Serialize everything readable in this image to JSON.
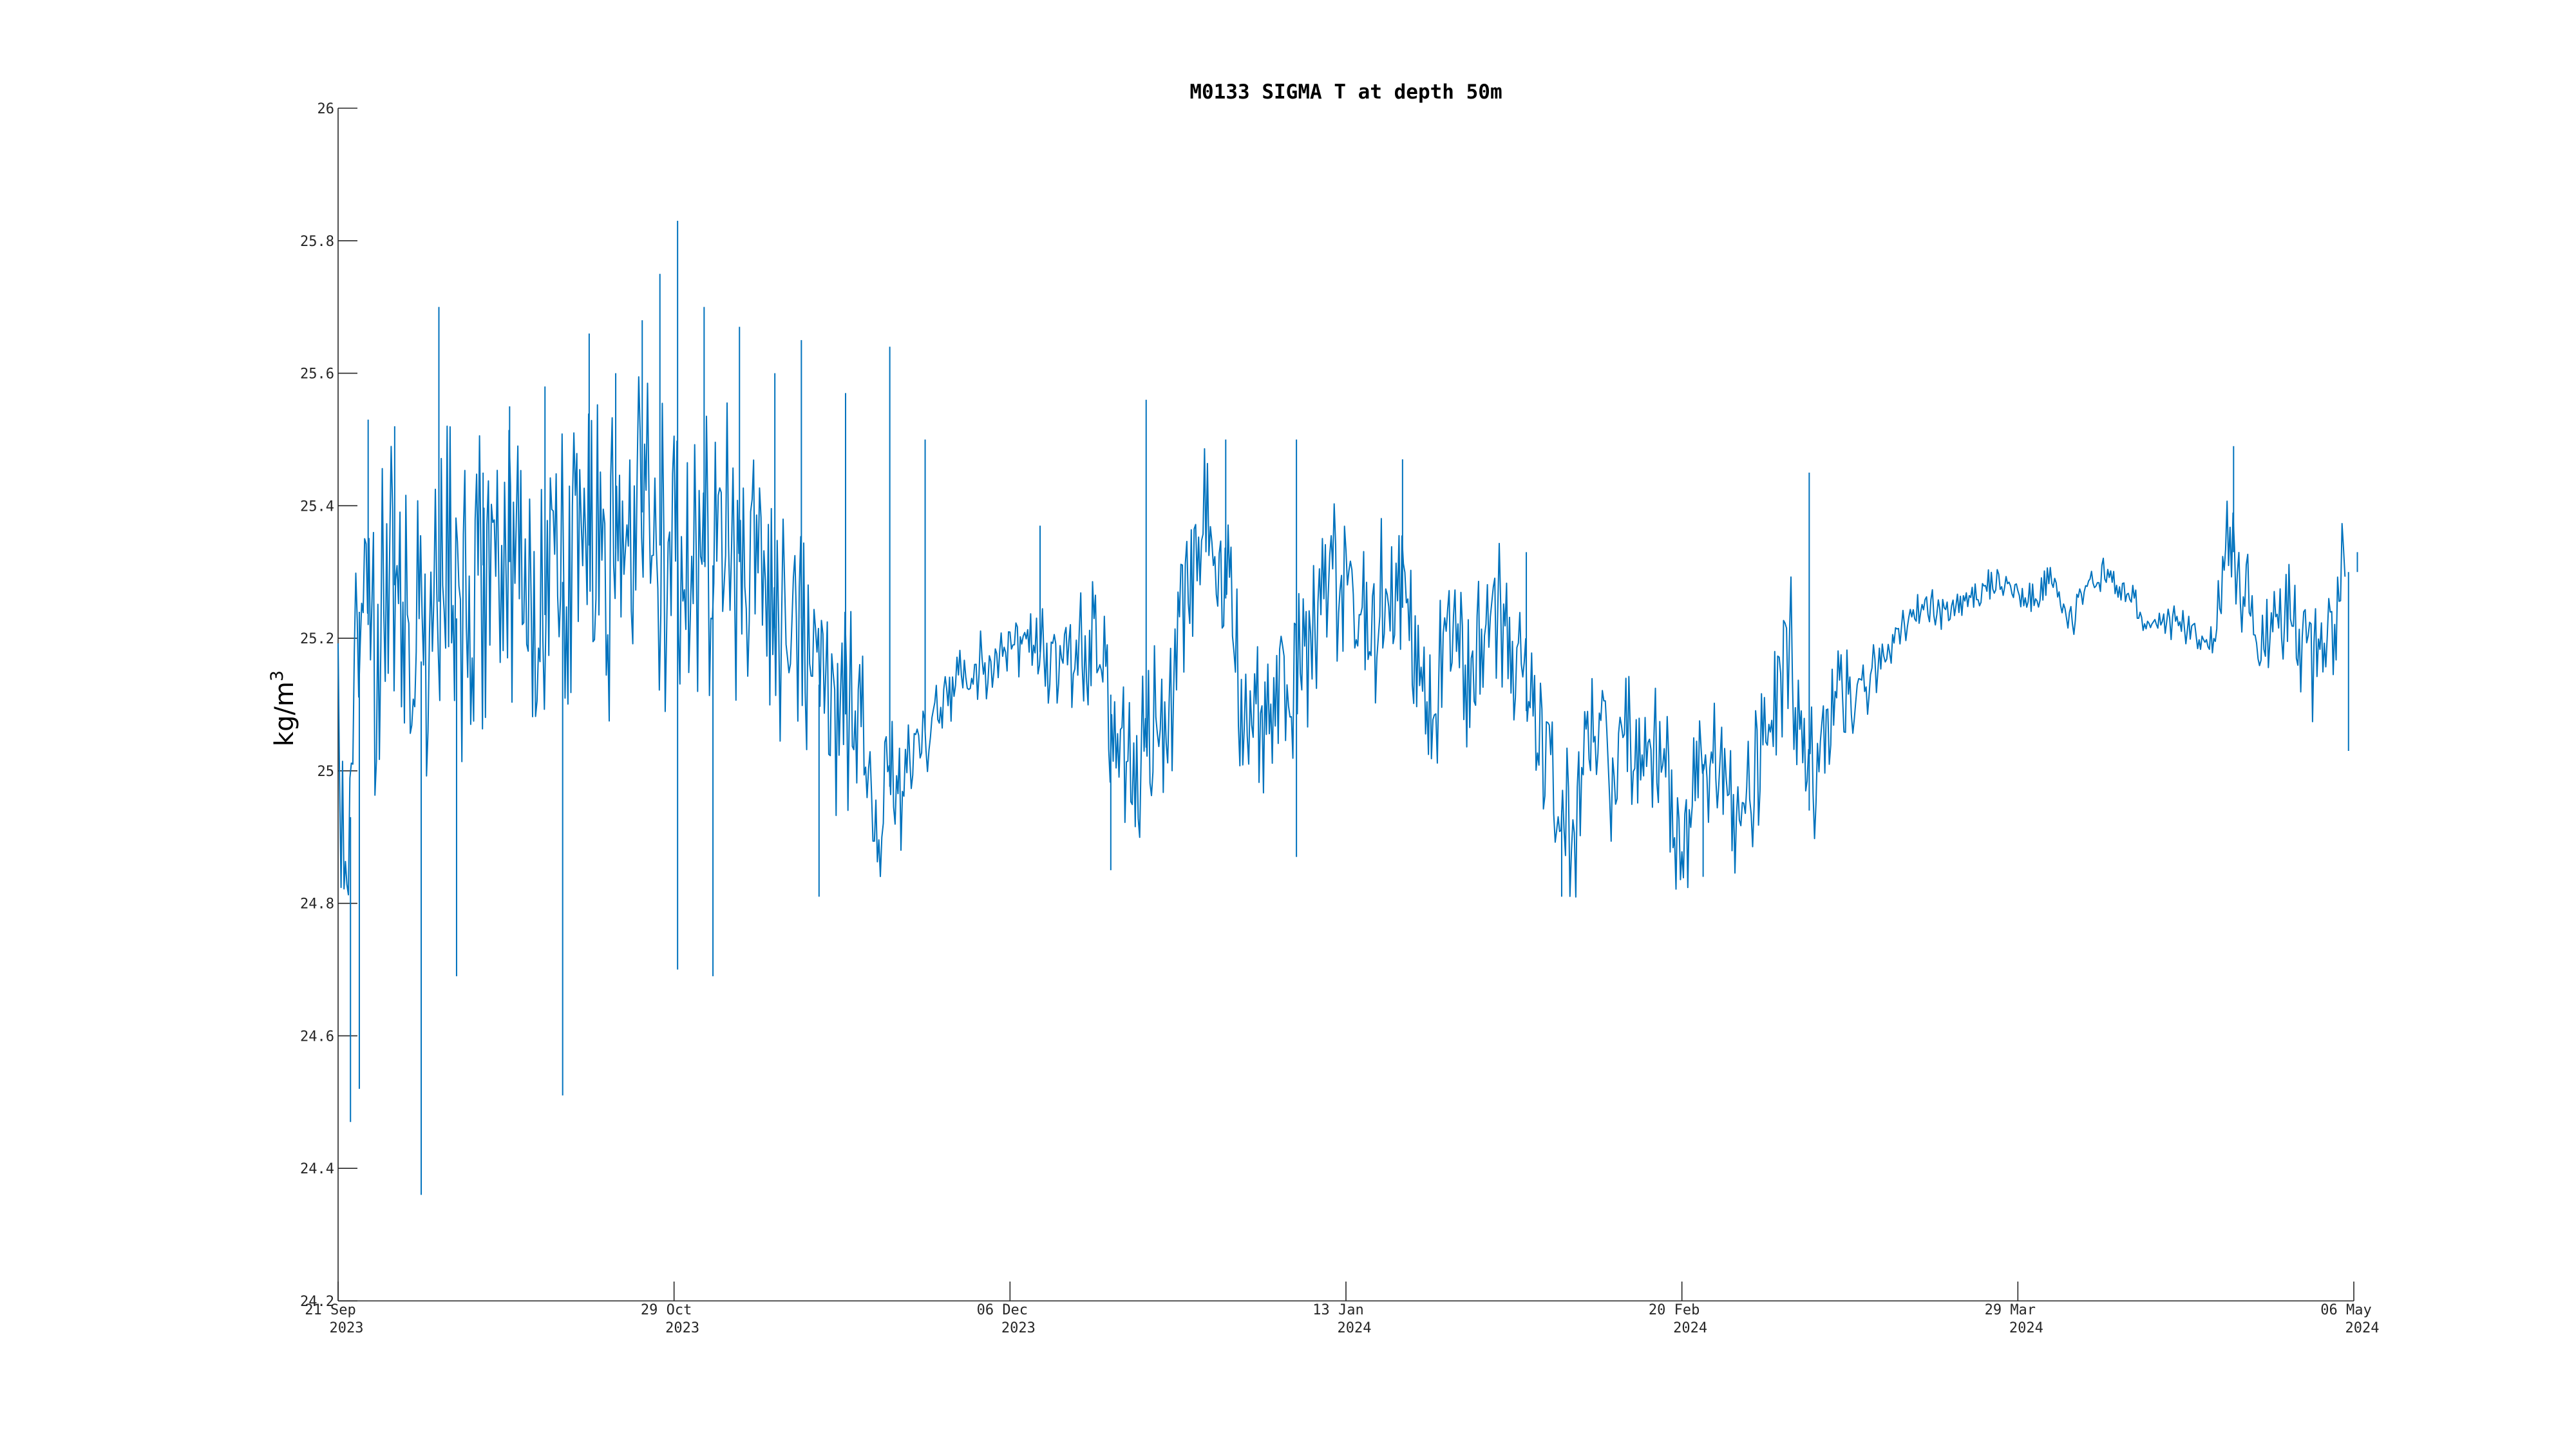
{
  "chart_data": {
    "type": "line",
    "title": "M0133 SIGMA T at depth 50m",
    "ylabel": "kg/m",
    "ylabel_superscript": "3",
    "xlabel": "",
    "ylim": [
      24.2,
      26
    ],
    "yticks": [
      24.2,
      24.4,
      24.6,
      24.8,
      25,
      25.2,
      25.4,
      25.6,
      25.8,
      26
    ],
    "xlim": [
      "2023-09-21",
      "2024-05-06"
    ],
    "xticks": [
      {
        "date": "2023-09-21",
        "day": "21 Sep",
        "year": "2023"
      },
      {
        "date": "2023-10-29",
        "day": "29 Oct",
        "year": "2023"
      },
      {
        "date": "2023-12-06",
        "day": "06 Dec",
        "year": "2023"
      },
      {
        "date": "2024-01-13",
        "day": "13 Jan",
        "year": "2024"
      },
      {
        "date": "2024-02-20",
        "day": "20 Feb",
        "year": "2024"
      },
      {
        "date": "2024-03-29",
        "day": "29 Mar",
        "year": "2024"
      },
      {
        "date": "2024-05-06",
        "day": "06 May",
        "year": "2024"
      }
    ],
    "grid": false,
    "series_color": "#0072BD",
    "series": [
      {
        "name": "",
        "points": [
          [
            "2023-09-21",
            25.05
          ],
          [
            "2023-09-22",
            24.75
          ],
          [
            "2023-09-23",
            25.2
          ],
          [
            "2023-09-24",
            25.3
          ],
          [
            "2023-09-25",
            25.1
          ],
          [
            "2023-09-27",
            25.3
          ],
          [
            "2023-09-29",
            25.2
          ],
          [
            "2023-10-01",
            25.15
          ],
          [
            "2023-10-03",
            25.3
          ],
          [
            "2023-10-05",
            25.2
          ],
          [
            "2023-10-07",
            25.3
          ],
          [
            "2023-10-09",
            25.35
          ],
          [
            "2023-10-11",
            25.3
          ],
          [
            "2023-10-13",
            25.2
          ],
          [
            "2023-10-15",
            25.25
          ],
          [
            "2023-10-17",
            25.3
          ],
          [
            "2023-10-19",
            25.35
          ],
          [
            "2023-10-21",
            25.3
          ],
          [
            "2023-10-23",
            25.35
          ],
          [
            "2023-10-25",
            25.4
          ],
          [
            "2023-10-27",
            25.35
          ],
          [
            "2023-10-29",
            25.3
          ],
          [
            "2023-10-31",
            25.35
          ],
          [
            "2023-11-02",
            25.3
          ],
          [
            "2023-11-04",
            25.35
          ],
          [
            "2023-11-06",
            25.3
          ],
          [
            "2023-11-08",
            25.25
          ],
          [
            "2023-11-10",
            25.2
          ],
          [
            "2023-11-12",
            25.25
          ],
          [
            "2023-11-14",
            25.15
          ],
          [
            "2023-11-16",
            25.05
          ],
          [
            "2023-11-18",
            25.1
          ],
          [
            "2023-11-20",
            25.0
          ],
          [
            "2023-11-22",
            24.97
          ],
          [
            "2023-11-24",
            25.0
          ],
          [
            "2023-11-26",
            25.05
          ],
          [
            "2023-11-28",
            25.1
          ],
          [
            "2023-11-30",
            25.13
          ],
          [
            "2023-12-02",
            25.15
          ],
          [
            "2023-12-04",
            25.17
          ],
          [
            "2023-12-06",
            25.18
          ],
          [
            "2023-12-08",
            25.2
          ],
          [
            "2023-12-10",
            25.17
          ],
          [
            "2023-12-12",
            25.14
          ],
          [
            "2023-12-14",
            25.2
          ],
          [
            "2023-12-16",
            25.15
          ],
          [
            "2023-12-18",
            25.1
          ],
          [
            "2023-12-20",
            25.0
          ],
          [
            "2023-12-22",
            25.05
          ],
          [
            "2023-12-24",
            25.1
          ],
          [
            "2023-12-26",
            25.3
          ],
          [
            "2023-12-28",
            25.35
          ],
          [
            "2023-12-30",
            25.3
          ],
          [
            "2024-01-01",
            25.1
          ],
          [
            "2024-01-03",
            25.05
          ],
          [
            "2024-01-05",
            25.1
          ],
          [
            "2024-01-07",
            25.15
          ],
          [
            "2024-01-09",
            25.2
          ],
          [
            "2024-01-11",
            25.25
          ],
          [
            "2024-01-13",
            25.3
          ],
          [
            "2024-01-15",
            25.2
          ],
          [
            "2024-01-17",
            25.25
          ],
          [
            "2024-01-19",
            25.27
          ],
          [
            "2024-01-21",
            25.15
          ],
          [
            "2024-01-23",
            25.12
          ],
          [
            "2024-01-25",
            25.2
          ],
          [
            "2024-01-27",
            25.15
          ],
          [
            "2024-01-29",
            25.2
          ],
          [
            "2024-01-31",
            25.25
          ],
          [
            "2024-02-02",
            25.1
          ],
          [
            "2024-02-04",
            25.05
          ],
          [
            "2024-02-06",
            24.95
          ],
          [
            "2024-02-08",
            24.9
          ],
          [
            "2024-02-10",
            25.1
          ],
          [
            "2024-02-12",
            25.0
          ],
          [
            "2024-02-14",
            25.05
          ],
          [
            "2024-02-16",
            25.02
          ],
          [
            "2024-02-18",
            25.03
          ],
          [
            "2024-02-20",
            24.87
          ],
          [
            "2024-02-22",
            25.0
          ],
          [
            "2024-02-24",
            25.05
          ],
          [
            "2024-02-26",
            24.95
          ],
          [
            "2024-02-28",
            25.0
          ],
          [
            "2024-03-01",
            25.1
          ],
          [
            "2024-03-03",
            25.2
          ],
          [
            "2024-03-05",
            25.0
          ],
          [
            "2024-03-07",
            25.05
          ],
          [
            "2024-03-09",
            25.1
          ],
          [
            "2024-03-11",
            25.12
          ],
          [
            "2024-03-13",
            25.15
          ],
          [
            "2024-03-15",
            25.2
          ],
          [
            "2024-03-17",
            25.23
          ],
          [
            "2024-03-19",
            25.25
          ],
          [
            "2024-03-21",
            25.24
          ],
          [
            "2024-03-23",
            25.26
          ],
          [
            "2024-03-25",
            25.27
          ],
          [
            "2024-03-27",
            25.28
          ],
          [
            "2024-03-29",
            25.27
          ],
          [
            "2024-03-31",
            25.25
          ],
          [
            "2024-04-02",
            25.3
          ],
          [
            "2024-04-04",
            25.22
          ],
          [
            "2024-04-06",
            25.28
          ],
          [
            "2024-04-08",
            25.3
          ],
          [
            "2024-04-10",
            25.27
          ],
          [
            "2024-04-12",
            25.23
          ],
          [
            "2024-04-14",
            25.22
          ],
          [
            "2024-04-16",
            25.22
          ],
          [
            "2024-04-18",
            25.21
          ],
          [
            "2024-04-20",
            25.2
          ],
          [
            "2024-04-22",
            25.35
          ],
          [
            "2024-04-24",
            25.25
          ],
          [
            "2024-04-26",
            25.2
          ],
          [
            "2024-04-28",
            25.25
          ],
          [
            "2024-04-30",
            25.2
          ],
          [
            "2024-05-02",
            25.15
          ],
          [
            "2024-05-04",
            25.25
          ],
          [
            "2024-05-05",
            25.3
          ]
        ],
        "spikes": [
          [
            "2023-09-22",
            24.47
          ],
          [
            "2023-09-23",
            24.52
          ],
          [
            "2023-09-24",
            25.53
          ],
          [
            "2023-09-27",
            25.52
          ],
          [
            "2023-09-30",
            24.36
          ],
          [
            "2023-10-02",
            25.7
          ],
          [
            "2023-10-04",
            24.69
          ],
          [
            "2023-10-07",
            25.45
          ],
          [
            "2023-10-10",
            25.55
          ],
          [
            "2023-10-14",
            25.58
          ],
          [
            "2023-10-16",
            24.51
          ],
          [
            "2023-10-19",
            25.66
          ],
          [
            "2023-10-22",
            25.6
          ],
          [
            "2023-10-25",
            25.68
          ],
          [
            "2023-10-27",
            25.75
          ],
          [
            "2023-10-29",
            25.83
          ],
          [
            "2023-10-29",
            24.7
          ],
          [
            "2023-11-01",
            25.7
          ],
          [
            "2023-11-02",
            24.69
          ],
          [
            "2023-11-05",
            25.67
          ],
          [
            "2023-11-09",
            25.6
          ],
          [
            "2023-11-12",
            25.65
          ],
          [
            "2023-11-14",
            24.81
          ],
          [
            "2023-11-17",
            25.57
          ],
          [
            "2023-11-22",
            25.64
          ],
          [
            "2023-11-26",
            25.5
          ],
          [
            "2023-12-09",
            25.37
          ],
          [
            "2023-12-17",
            24.85
          ],
          [
            "2023-12-21",
            25.56
          ],
          [
            "2023-12-30",
            25.5
          ],
          [
            "2024-01-07",
            25.5
          ],
          [
            "2024-01-07",
            24.87
          ],
          [
            "2024-01-19",
            25.47
          ],
          [
            "2024-02-02",
            25.33
          ],
          [
            "2024-02-06",
            24.81
          ],
          [
            "2024-02-22",
            24.84
          ],
          [
            "2024-03-05",
            25.45
          ],
          [
            "2024-03-05",
            24.94
          ],
          [
            "2024-04-22",
            25.49
          ],
          [
            "2024-05-05",
            25.03
          ],
          [
            "2024-05-06",
            25.33
          ]
        ]
      }
    ]
  }
}
